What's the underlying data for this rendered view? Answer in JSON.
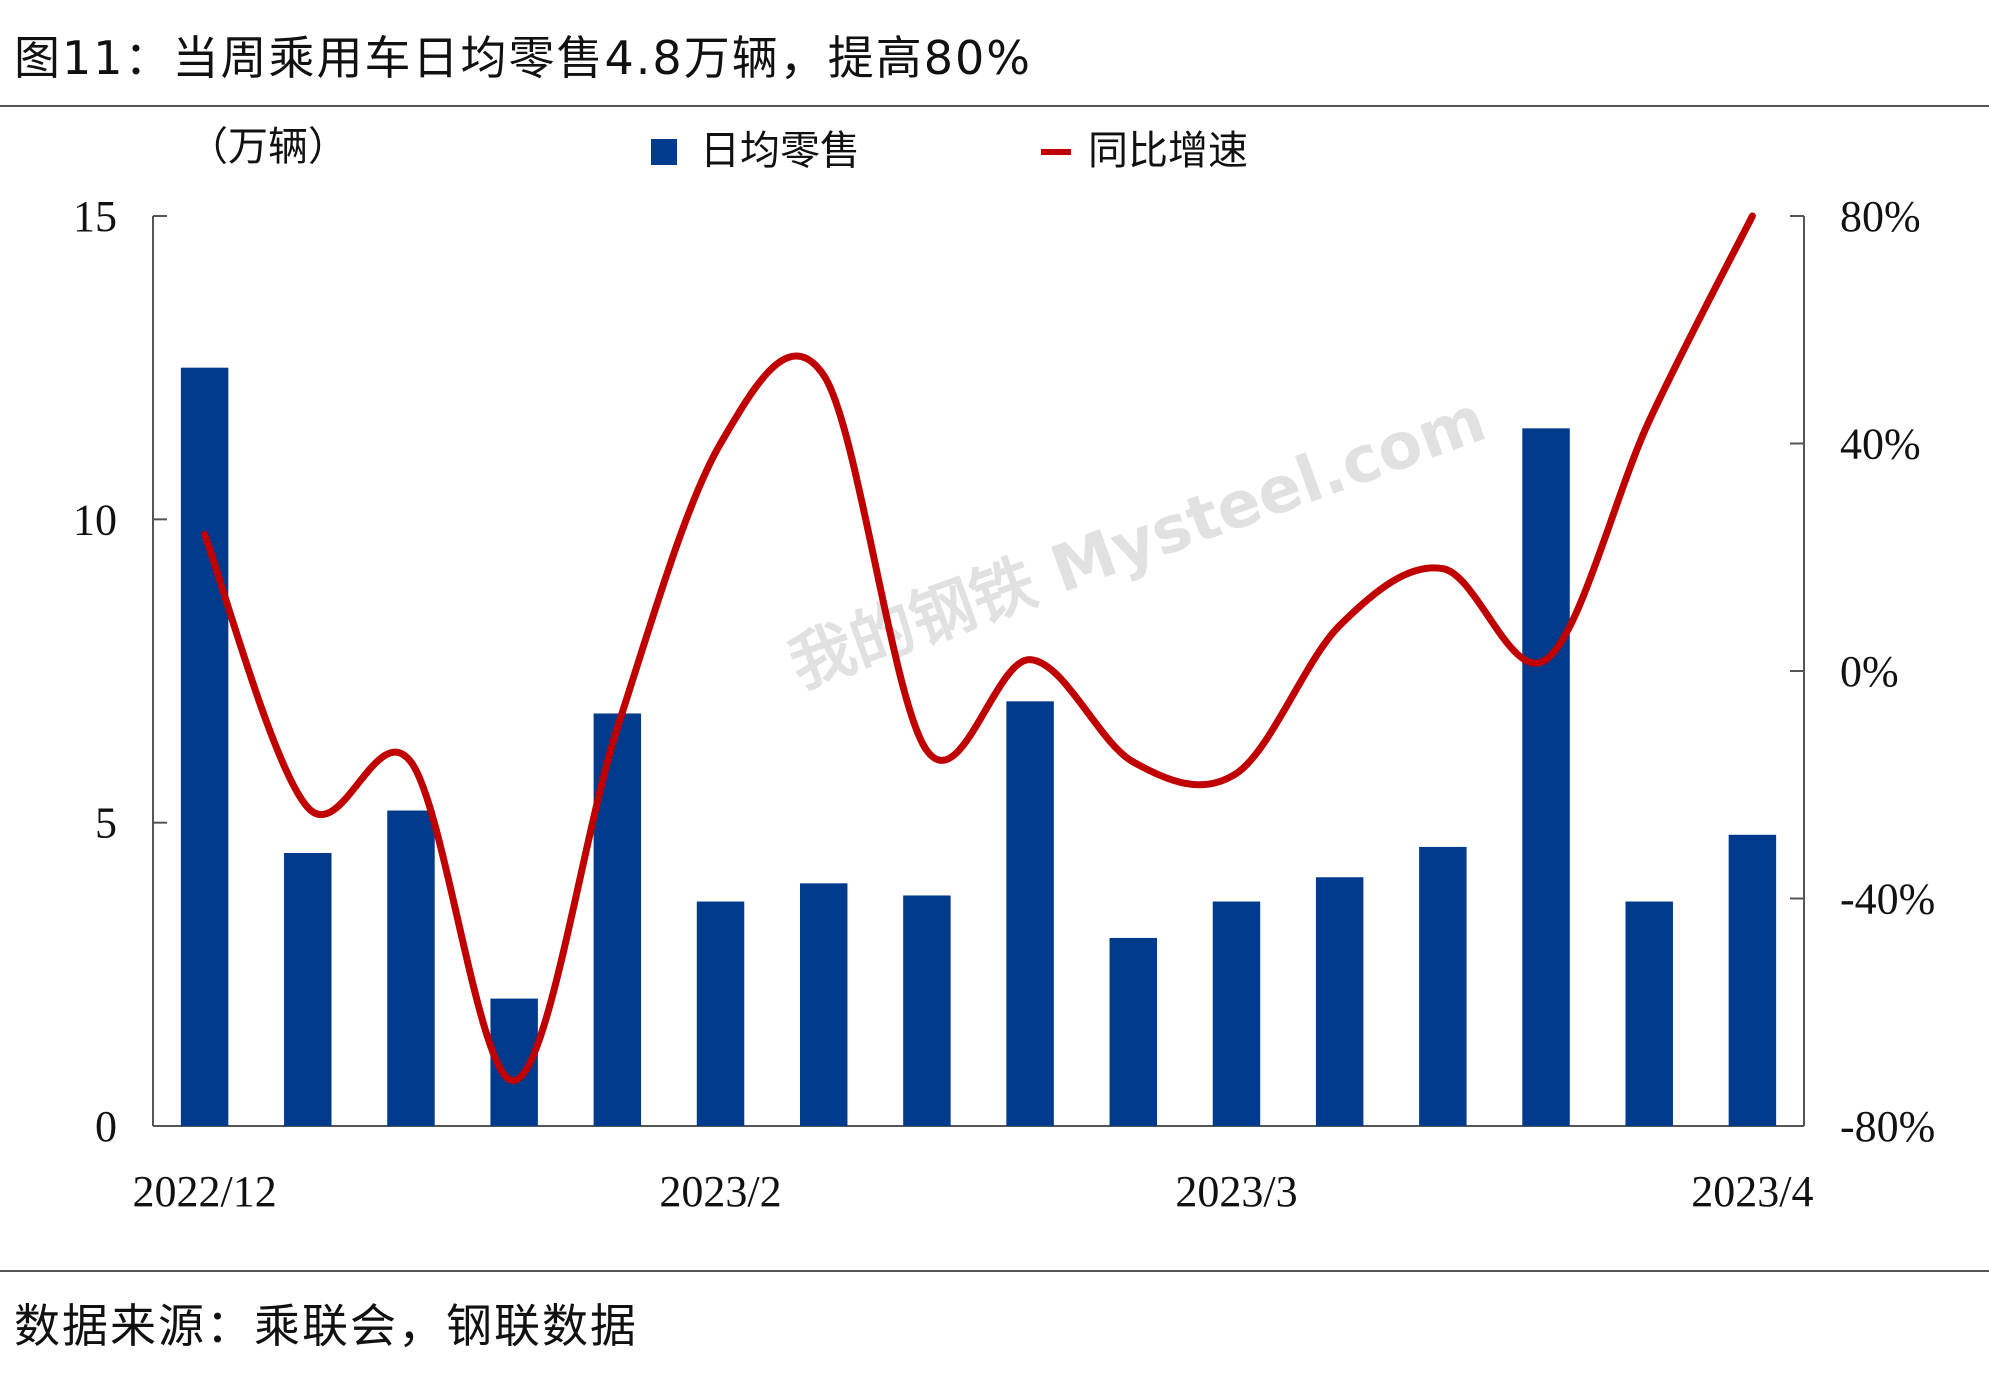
{
  "figure": {
    "title": "图11：当周乘用车日均零售4.8万辆，提高80%",
    "source": "数据来源：乘联会，钢联数据",
    "watermark": "我的钢铁 Mysteel.com"
  },
  "chart_data": {
    "type": "bar+line",
    "y_left_unit": "（万辆）",
    "ylim_left": [
      0,
      15
    ],
    "yticks_left": [
      "0",
      "5",
      "10",
      "15"
    ],
    "ylim_right": [
      -80,
      80
    ],
    "yticks_right": [
      "-80%",
      "-40%",
      "0%",
      "40%",
      "80%"
    ],
    "x_tick_labels": [
      "2022/12",
      "2023/2",
      "2023/3",
      "2023/4"
    ],
    "x_tick_positions": [
      0,
      5,
      10,
      15
    ],
    "legend_placement": "top",
    "grid": false,
    "series": [
      {
        "name": "日均零售",
        "type": "bar",
        "axis": "left",
        "color": "#003A8C",
        "values": [
          12.5,
          4.5,
          5.2,
          2.1,
          6.8,
          3.7,
          4.0,
          3.8,
          7.0,
          3.1,
          3.7,
          4.1,
          4.6,
          11.5,
          3.7,
          4.8
        ]
      },
      {
        "name": "同比增速",
        "type": "line",
        "axis": "right",
        "color": "#C00000",
        "values": [
          24,
          -24,
          -16,
          -72,
          -10,
          40,
          52,
          -14,
          2,
          -16,
          -18,
          8,
          18,
          2,
          44,
          80
        ]
      }
    ]
  }
}
